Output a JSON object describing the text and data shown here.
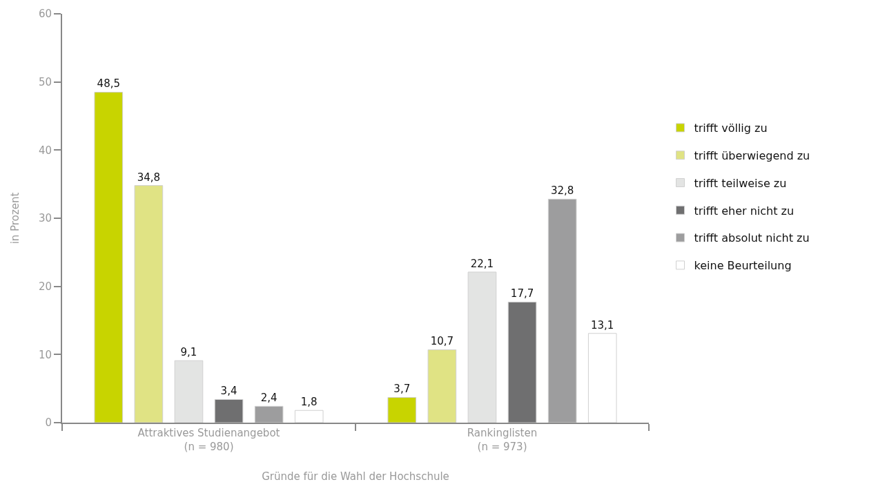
{
  "chart_data": {
    "type": "bar",
    "xlabel": "Gründe für die Wahl der Hochschule",
    "ylabel": "in Prozent",
    "categories": [
      "Attraktives Studienangebot\n(n = 980)",
      "Rankinglisten\n(n = 973)"
    ],
    "series": [
      {
        "name": "trifft völlig zu",
        "color": "#c8d400",
        "values": [
          48.5,
          3.7
        ],
        "value_labels": [
          "48,5",
          "3,7"
        ]
      },
      {
        "name": "trifft überwiegend zu",
        "color": "#e0e384",
        "values": [
          34.8,
          10.7
        ],
        "value_labels": [
          "34,8",
          "10,7"
        ]
      },
      {
        "name": "trifft teilweise zu",
        "color": "#e3e4e3",
        "values": [
          9.1,
          22.1
        ],
        "value_labels": [
          "9,1",
          "22,1"
        ]
      },
      {
        "name": "trifft eher nicht zu",
        "color": "#6f6f70",
        "values": [
          3.4,
          17.7
        ],
        "value_labels": [
          "3,4",
          "17,7"
        ]
      },
      {
        "name": "trifft absolut nicht zu",
        "color": "#9d9d9e",
        "values": [
          2.4,
          32.8
        ],
        "value_labels": [
          "2,4",
          "32,8"
        ]
      },
      {
        "name": "keine Beurteilung",
        "color": "#ffffff",
        "values": [
          1.8,
          13.1
        ],
        "value_labels": [
          "1,8",
          "13,1"
        ]
      }
    ],
    "ylim": [
      0,
      60
    ],
    "yticks": [
      0,
      10,
      20,
      30,
      40,
      50,
      60
    ],
    "grid": false,
    "legend": "right"
  }
}
